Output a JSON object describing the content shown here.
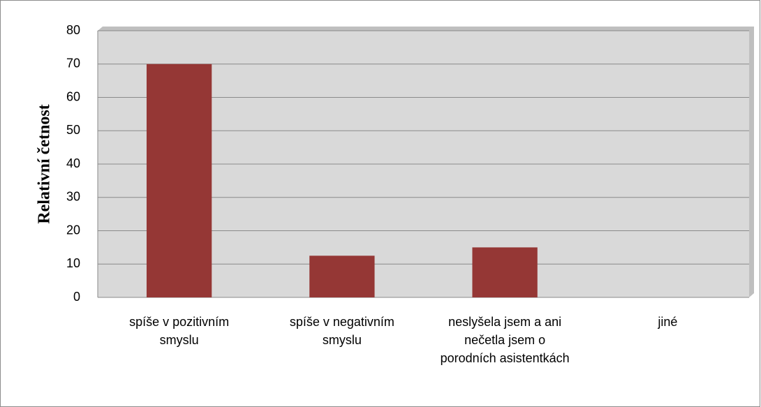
{
  "chart_data": {
    "type": "bar",
    "y_label": "Relativní četnost",
    "categories": [
      "spíše v pozitivním smyslu",
      "spíše v negativním smyslu",
      "neslyšela jsem a ani nečetla jsem o porodních asistentkách",
      "jiné"
    ],
    "values": [
      70,
      12.5,
      15,
      0
    ],
    "color": "#953735",
    "ylim": [
      0,
      80
    ],
    "yticks": [
      0,
      10,
      20,
      30,
      40,
      50,
      60,
      70,
      80
    ],
    "grid": true
  }
}
